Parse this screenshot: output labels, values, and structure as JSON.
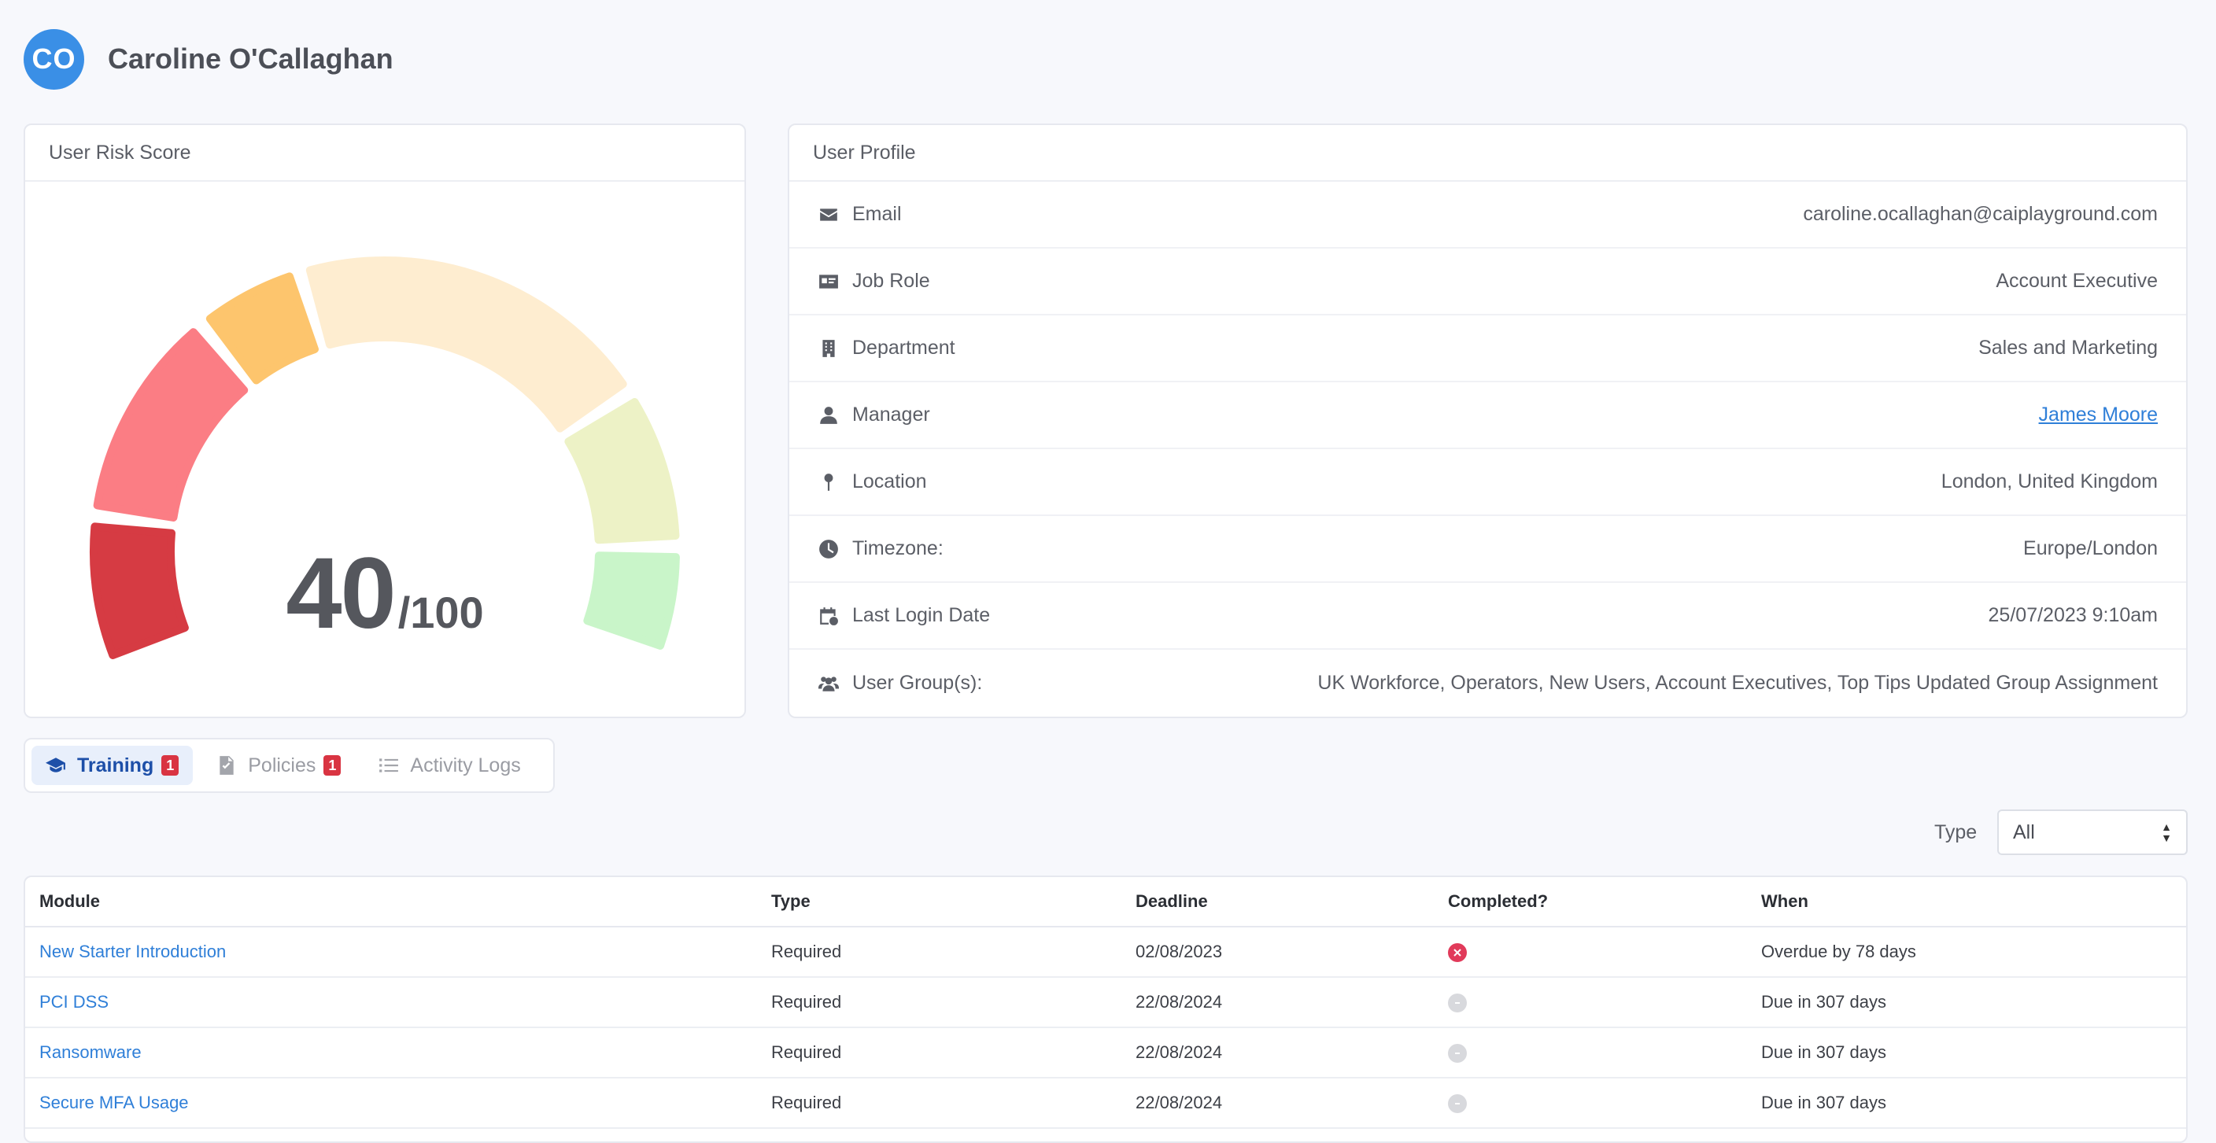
{
  "user": {
    "initials": "CO",
    "name": "Caroline O'Callaghan"
  },
  "risk": {
    "title": "User Risk Score",
    "score": "40",
    "max": "/100",
    "score_value": 40
  },
  "profile": {
    "title": "User Profile",
    "rows": [
      {
        "icon": "envelope-icon",
        "label": "Email",
        "value": "caroline.ocallaghan@caiplayground.com"
      },
      {
        "icon": "id-card-icon",
        "label": "Job Role",
        "value": "Account Executive"
      },
      {
        "icon": "building-icon",
        "label": "Department",
        "value": "Sales and Marketing"
      },
      {
        "icon": "person-icon",
        "label": "Manager",
        "value": "James Moore"
      },
      {
        "icon": "map-pin-icon",
        "label": "Location",
        "value": "London, United Kingdom"
      },
      {
        "icon": "clock-icon",
        "label": "Timezone:",
        "value": "Europe/London"
      },
      {
        "icon": "calendar-clock-icon",
        "label": "Last Login Date",
        "value": "25/07/2023 9:10am"
      },
      {
        "icon": "users-icon",
        "label": "User Group(s):",
        "value": "UK Workforce, Operators, New Users, Account Executives, Top Tips Updated Group Assignment"
      }
    ]
  },
  "tabs": [
    {
      "label": "Training",
      "badge": "1",
      "icon": "graduation-cap-icon",
      "active": true
    },
    {
      "label": "Policies",
      "badge": "1",
      "icon": "document-icon",
      "active": false
    },
    {
      "label": "Activity Logs",
      "badge": "",
      "icon": "list-icon",
      "active": false
    }
  ],
  "filter": {
    "label": "Type",
    "value": "All"
  },
  "table": {
    "headers": [
      "Module",
      "Type",
      "Deadline",
      "Completed?",
      "When"
    ],
    "rows": [
      {
        "module": "New Starter Introduction",
        "type": "Required",
        "deadline": "02/08/2023",
        "completed": "fail",
        "when": "Overdue by 78 days"
      },
      {
        "module": "PCI DSS",
        "type": "Required",
        "deadline": "22/08/2024",
        "completed": "pending",
        "when": "Due in 307 days"
      },
      {
        "module": "Ransomware",
        "type": "Required",
        "deadline": "22/08/2024",
        "completed": "pending",
        "when": "Due in 307 days"
      },
      {
        "module": "Secure MFA Usage",
        "type": "Required",
        "deadline": "22/08/2024",
        "completed": "pending",
        "when": "Due in 307 days"
      }
    ]
  },
  "colors": {
    "accent": "#3a8fe6",
    "link": "#2f7fd8",
    "badge": "#d93442",
    "gauge_segments": [
      "#d63b43",
      "#fb7d84",
      "#fdc56d",
      "#feedd0",
      "#edf2c6",
      "#c9f5c9"
    ]
  }
}
